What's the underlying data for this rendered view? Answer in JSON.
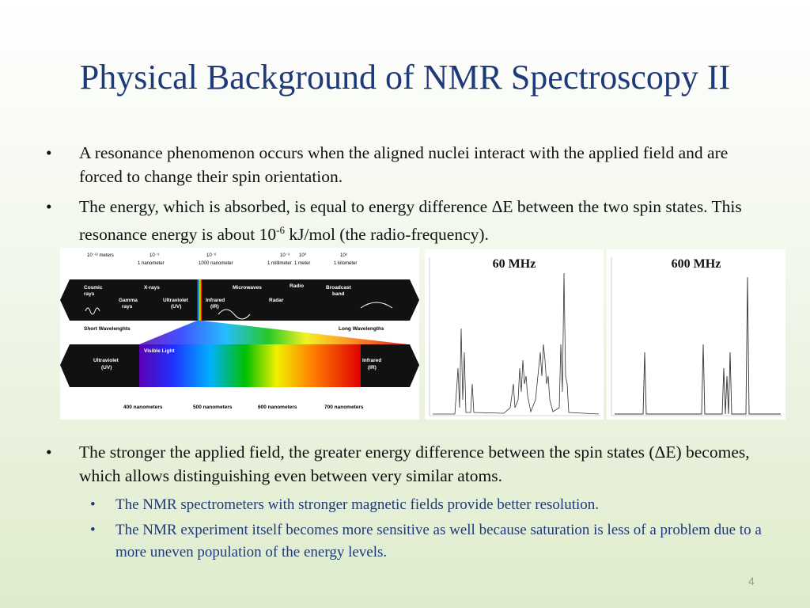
{
  "slide": {
    "title": "Physical Background of NMR Spectroscopy II",
    "bullet_glyph": "•",
    "page_number": "4"
  },
  "bullets_top": [
    {
      "text": "A resonance phenomenon occurs when the aligned nuclei interact with the applied field and are forced to change their spin orientation."
    },
    {
      "text_before": "The energy, which is absorbed, is equal to energy difference ΔE between the two spin states. This resonance energy is about 10",
      "superscript": "-6",
      "text_after": " kJ/mol (the radio-frequency)."
    }
  ],
  "bullets_bottom": {
    "main": "The stronger the applied field, the greater energy difference between the spin states (ΔE) becomes, which allows distinguishing even between very similar atoms.",
    "subs": [
      "The NMR spectrometers with stronger magnetic fields provide better resolution.",
      "The NMR experiment itself becomes more sensitive as well because saturation is less of a problem due to a more uneven population of the energy levels."
    ]
  },
  "spectrum_figure": {
    "wavelength_scale": [
      "10⁻¹² meters",
      "10⁻⁹",
      "10⁻⁶",
      "10⁻³",
      "10⁰",
      "10³"
    ],
    "wavelength_units": [
      "1 nanometer",
      "1000 nanometer",
      "1 millimeter",
      "1 meter",
      "1 kilometer"
    ],
    "bands": [
      "Cosmic rays",
      "Gamma rays",
      "X-rays",
      "Ultraviolet (UV)",
      "Infrared (IR)",
      "Microwaves",
      "Radar",
      "Radio",
      "Broadcast band"
    ],
    "short_label": "Short Wavelenghts",
    "long_label": "Long Wavelengths",
    "visible_label": "Visible Light",
    "uv_label": "Ultraviolet (UV)",
    "ir_label": "Infrared (IR)",
    "nm_ticks": [
      "400 nanometers",
      "500 nanometers",
      "600 nanometers",
      "700 nanometers"
    ]
  },
  "nmr_spectra": [
    {
      "label": "60 MHz"
    },
    {
      "label": "600 MHz"
    }
  ],
  "colors": {
    "title": "#1f3a78",
    "sub_bullets": "#1f3a78",
    "band_dark": "#111111"
  }
}
